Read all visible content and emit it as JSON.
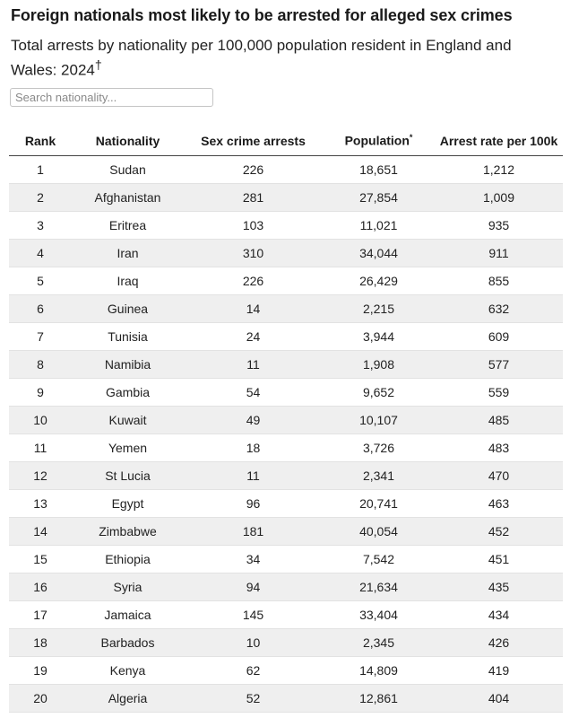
{
  "title": "Foreign nationals most likely to be arrested for alleged sex crimes",
  "subtitle": "Total arrests by nationality per 100,000 population resident in England and Wales: 2024",
  "subtitle_mark": "†",
  "search": {
    "placeholder": "Search nationality..."
  },
  "chart_data": {
    "type": "table",
    "columns": [
      "Rank",
      "Nationality",
      "Sex crime arrests",
      "Population",
      "Arrest rate per 100k"
    ],
    "population_mark": "*",
    "rows": [
      [
        "1",
        "Sudan",
        "226",
        "18,651",
        "1,212"
      ],
      [
        "2",
        "Afghanistan",
        "281",
        "27,854",
        "1,009"
      ],
      [
        "3",
        "Eritrea",
        "103",
        "11,021",
        "935"
      ],
      [
        "4",
        "Iran",
        "310",
        "34,044",
        "911"
      ],
      [
        "5",
        "Iraq",
        "226",
        "26,429",
        "855"
      ],
      [
        "6",
        "Guinea",
        "14",
        "2,215",
        "632"
      ],
      [
        "7",
        "Tunisia",
        "24",
        "3,944",
        "609"
      ],
      [
        "8",
        "Namibia",
        "11",
        "1,908",
        "577"
      ],
      [
        "9",
        "Gambia",
        "54",
        "9,652",
        "559"
      ],
      [
        "10",
        "Kuwait",
        "49",
        "10,107",
        "485"
      ],
      [
        "11",
        "Yemen",
        "18",
        "3,726",
        "483"
      ],
      [
        "12",
        "St Lucia",
        "11",
        "2,341",
        "470"
      ],
      [
        "13",
        "Egypt",
        "96",
        "20,741",
        "463"
      ],
      [
        "14",
        "Zimbabwe",
        "181",
        "40,054",
        "452"
      ],
      [
        "15",
        "Ethiopia",
        "34",
        "7,542",
        "451"
      ],
      [
        "16",
        "Syria",
        "94",
        "21,634",
        "435"
      ],
      [
        "17",
        "Jamaica",
        "145",
        "33,404",
        "434"
      ],
      [
        "18",
        "Barbados",
        "10",
        "2,345",
        "426"
      ],
      [
        "19",
        "Kenya",
        "62",
        "14,809",
        "419"
      ],
      [
        "20",
        "Algeria",
        "52",
        "12,861",
        "404"
      ]
    ]
  }
}
